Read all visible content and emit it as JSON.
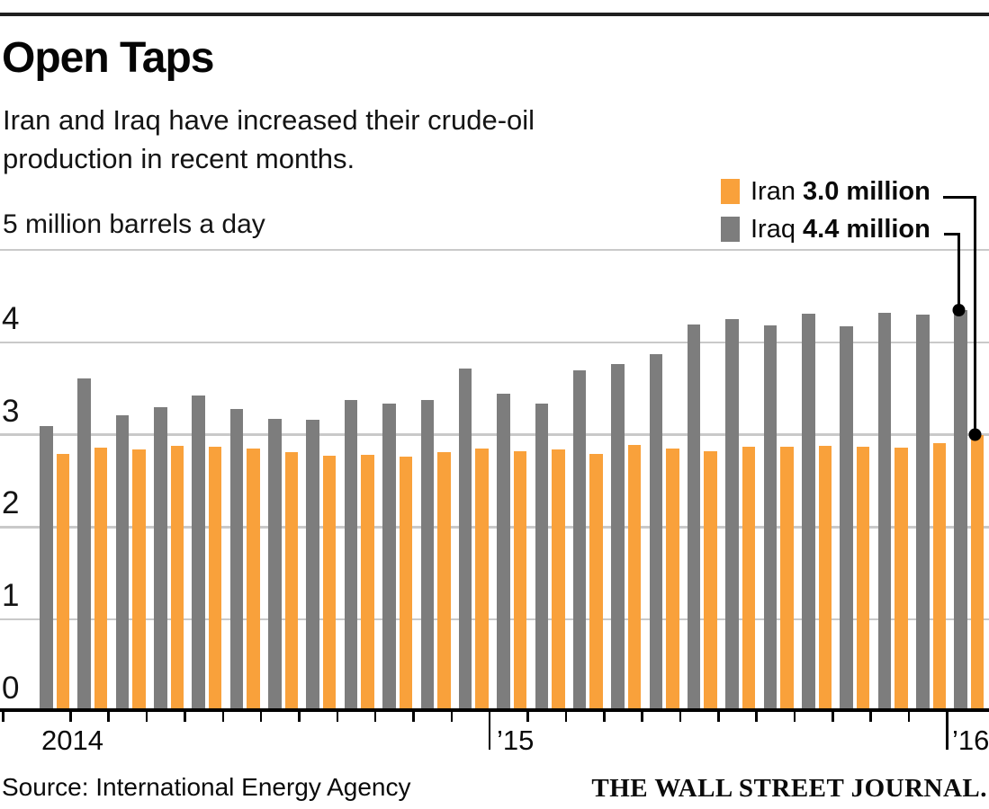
{
  "header": {
    "title": "Open Taps",
    "subtitle_line1": "Iran and Iraq have increased their crude-oil",
    "subtitle_line2": "production in recent months."
  },
  "legend": {
    "items": [
      {
        "name": "Iran",
        "value": "3.0 million",
        "color": "#F9A13B"
      },
      {
        "name": "Iraq",
        "value": "4.4 million",
        "color": "#7D7D7D"
      }
    ]
  },
  "chart_data": {
    "type": "bar",
    "title": "Open Taps",
    "subtitle": "Iran and Iraq have increased their crude-oil production in recent months.",
    "unit_label": "5 million barrels a day",
    "ylabel": "million barrels a day",
    "ylim": [
      0,
      5
    ],
    "yticks": [
      "4",
      "3",
      "2",
      "1",
      "0"
    ],
    "grid": true,
    "legend_position": "top-right",
    "x_axis_labels": [
      "2014",
      "’15",
      "’16"
    ],
    "categories": [
      "Jan 2014",
      "Feb 2014",
      "Mar 2014",
      "Apr 2014",
      "May 2014",
      "Jun 2014",
      "Jul 2014",
      "Aug 2014",
      "Sep 2014",
      "Oct 2014",
      "Nov 2014",
      "Dec 2014",
      "Jan 2015",
      "Feb 2015",
      "Mar 2015",
      "Apr 2015",
      "May 2015",
      "Jun 2015",
      "Jul 2015",
      "Aug 2015",
      "Sep 2015",
      "Oct 2015",
      "Nov 2015",
      "Dec 2015",
      "Jan 2016"
    ],
    "series": [
      {
        "name": "Iraq",
        "color": "#7D7D7D",
        "latest_label": "4.4 million",
        "values": [
          3.09,
          3.61,
          3.21,
          3.3,
          3.42,
          3.28,
          3.17,
          3.16,
          3.38,
          3.34,
          3.38,
          3.72,
          3.44,
          3.34,
          3.7,
          3.76,
          3.87,
          4.19,
          4.25,
          4.18,
          4.31,
          4.17,
          4.32,
          4.3,
          4.35
        ]
      },
      {
        "name": "Iran",
        "color": "#F9A13B",
        "latest_label": "3.0 million",
        "values": [
          2.79,
          2.86,
          2.84,
          2.88,
          2.87,
          2.85,
          2.81,
          2.77,
          2.78,
          2.76,
          2.81,
          2.85,
          2.82,
          2.84,
          2.79,
          2.89,
          2.85,
          2.82,
          2.87,
          2.87,
          2.88,
          2.87,
          2.86,
          2.91,
          3.0
        ]
      }
    ]
  },
  "footer": {
    "source": "Source: International Energy Agency",
    "brand": "THE WALL STREET JOURNAL."
  }
}
